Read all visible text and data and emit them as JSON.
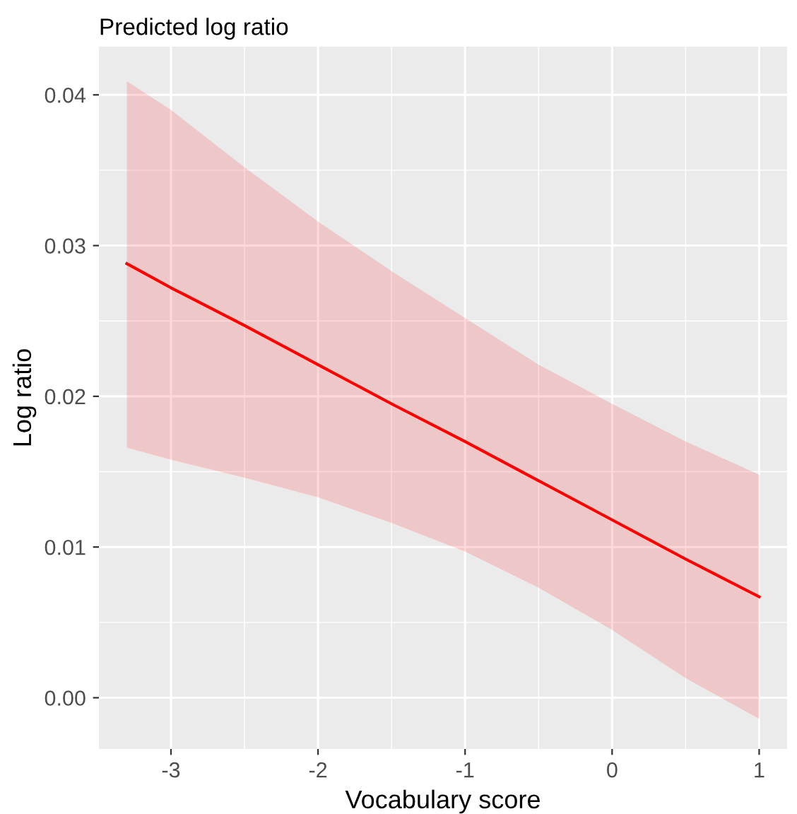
{
  "chart_data": {
    "type": "line",
    "title": "Predicted log ratio",
    "xlabel": "Vocabulary score",
    "ylabel": "Log ratio",
    "x": [
      -3.3,
      -3,
      -2.5,
      -2,
      -1.5,
      -1,
      -0.5,
      0,
      0.5,
      1
    ],
    "series": [
      {
        "color": "#ff0000",
        "values": [
          0.0288,
          0.0272,
          0.0247,
          0.0221,
          0.0195,
          0.017,
          0.0144,
          0.0118,
          0.0092,
          0.0067
        ],
        "lower": [
          0.0166,
          0.0158,
          0.0146,
          0.0133,
          0.0116,
          0.0097,
          0.0073,
          0.0045,
          0.0013,
          -0.0014
        ],
        "upper": [
          0.0409,
          0.039,
          0.0352,
          0.0316,
          0.0283,
          0.0252,
          0.0221,
          0.0195,
          0.017,
          0.0148
        ]
      }
    ],
    "xlim": [
      -3.49,
      1.19
    ],
    "ylim": [
      -0.0034,
      0.0432
    ],
    "xticks": [
      -3,
      -2,
      -1,
      0,
      1
    ],
    "yticks": [
      {
        "value": 0,
        "label": "0.00"
      },
      {
        "value": 0.01,
        "label": "0.01"
      },
      {
        "value": 0.02,
        "label": "0.02"
      },
      {
        "value": 0.03,
        "label": "0.03"
      },
      {
        "value": 0.04,
        "label": "0.04"
      }
    ],
    "grid": true,
    "marker": "none",
    "line_style": "solid"
  }
}
